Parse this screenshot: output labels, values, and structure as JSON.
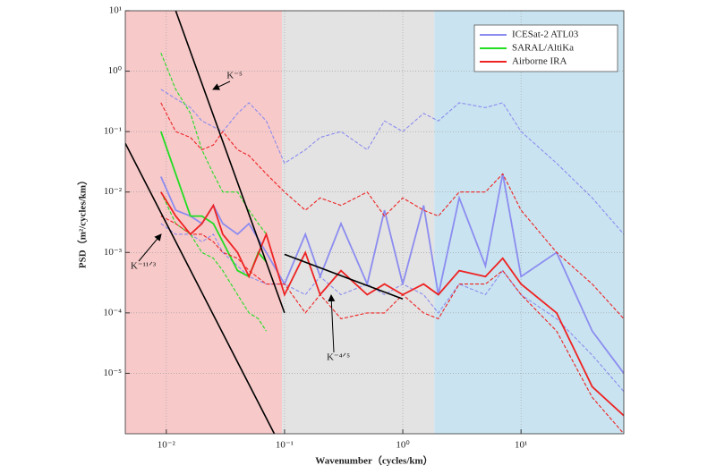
{
  "chart_data": {
    "type": "line",
    "xlabel": "Wavenumber（cycles/km）",
    "ylabel": "PSD（m²/cycles/km）",
    "xscale": "log",
    "yscale": "log",
    "xlim": [
      0.0045,
      74
    ],
    "ylim": [
      1e-06,
      10
    ],
    "xticks": [
      {
        "value": 0.01,
        "label": "10⁻²"
      },
      {
        "value": 0.1,
        "label": "10⁻¹"
      },
      {
        "value": 1,
        "label": "10⁰"
      },
      {
        "value": 10,
        "label": "10¹"
      }
    ],
    "yticks": [
      {
        "value": 1e-05,
        "label": "10⁻⁵"
      },
      {
        "value": 0.0001,
        "label": "10⁻⁴"
      },
      {
        "value": 0.001,
        "label": "10⁻³"
      },
      {
        "value": 0.01,
        "label": "10⁻²"
      },
      {
        "value": 0.1,
        "label": "10⁻¹"
      },
      {
        "value": 1,
        "label": "10⁰"
      },
      {
        "value": 10,
        "label": "10¹"
      }
    ],
    "grid": true,
    "legend_position": "upper right",
    "regions": [
      {
        "xlim": [
          0.0045,
          0.095
        ],
        "color": "#f7c9c9"
      },
      {
        "xlim": [
          0.095,
          1.85
        ],
        "color": "#e3e3e3"
      },
      {
        "xlim": [
          1.85,
          74
        ],
        "color": "#c9e4f0"
      }
    ],
    "series": [
      {
        "name": "ICESat-2 ATL03",
        "color": "#8c8cf0",
        "x": [
          0.009,
          0.012,
          0.016,
          0.02,
          0.025,
          0.03,
          0.04,
          0.05,
          0.07,
          0.1,
          0.15,
          0.2,
          0.3,
          0.5,
          0.7,
          1,
          1.5,
          2,
          3,
          5,
          7,
          10,
          20,
          40,
          74
        ],
        "values": [
          0.018,
          0.005,
          0.004,
          0.003,
          0.006,
          0.003,
          0.002,
          0.003,
          0.001,
          0.0003,
          0.002,
          0.0004,
          0.003,
          0.0003,
          0.005,
          0.0003,
          0.006,
          0.0002,
          0.008,
          0.0006,
          0.02,
          0.0004,
          0.001,
          5e-05,
          1e-05
        ],
        "upper": [
          0.5,
          0.35,
          0.25,
          0.15,
          0.12,
          0.1,
          0.2,
          0.3,
          0.15,
          0.03,
          0.05,
          0.08,
          0.1,
          0.05,
          0.15,
          0.1,
          0.2,
          0.15,
          0.3,
          0.25,
          0.3,
          0.1,
          0.03,
          0.008,
          0.002
        ],
        "lower": [
          0.003,
          0.002,
          0.002,
          0.0015,
          0.002,
          0.001,
          0.0006,
          0.0004,
          0.0003,
          0.0003,
          0.0002,
          0.0004,
          0.0002,
          0.0003,
          0.0002,
          0.0003,
          0.0002,
          0.0001,
          0.0003,
          0.0002,
          0.0005,
          0.0002,
          8e-05,
          2e-05,
          5e-06
        ]
      },
      {
        "name": "SARAL/AltiKa",
        "color": "#22dd22",
        "x": [
          0.009,
          0.012,
          0.016,
          0.02,
          0.025,
          0.03,
          0.04,
          0.05,
          0.06,
          0.07
        ],
        "values": [
          0.1,
          0.02,
          0.004,
          0.004,
          0.003,
          0.0015,
          0.0005,
          0.0004,
          0.001,
          0.0007
        ],
        "upper": [
          2,
          0.5,
          0.2,
          0.05,
          0.02,
          0.01,
          0.01,
          0.005,
          0.003,
          0.002
        ],
        "lower": [
          0.01,
          0.003,
          0.002,
          0.001,
          0.0008,
          0.0005,
          0.0002,
          0.0001,
          8e-05,
          5e-05
        ]
      },
      {
        "name": "Airborne IRA",
        "color": "#ee2222",
        "x": [
          0.009,
          0.012,
          0.016,
          0.02,
          0.025,
          0.03,
          0.04,
          0.05,
          0.07,
          0.1,
          0.15,
          0.2,
          0.3,
          0.5,
          0.7,
          1,
          1.5,
          2,
          3,
          5,
          7,
          10,
          20,
          40,
          74
        ],
        "values": [
          0.01,
          0.004,
          0.002,
          0.003,
          0.006,
          0.002,
          0.001,
          0.0004,
          0.002,
          0.0002,
          0.001,
          0.0002,
          0.0005,
          0.0002,
          0.0003,
          0.0002,
          0.0003,
          0.0002,
          0.0005,
          0.0004,
          0.0008,
          0.0003,
          0.0001,
          6e-06,
          2e-06
        ],
        "upper": [
          0.3,
          0.1,
          0.08,
          0.05,
          0.06,
          0.1,
          0.05,
          0.04,
          0.02,
          0.01,
          0.005,
          0.008,
          0.006,
          0.01,
          0.004,
          0.008,
          0.005,
          0.004,
          0.01,
          0.01,
          0.02,
          0.005,
          0.001,
          0.0003,
          8e-05
        ],
        "lower": [
          0.004,
          0.003,
          0.002,
          0.002,
          0.0015,
          0.001,
          0.0008,
          0.0005,
          0.0003,
          0.0003,
          0.0001,
          0.0002,
          8e-05,
          0.0001,
          0.0001,
          0.0002,
          0.0001,
          8e-05,
          0.0003,
          0.0003,
          0.0005,
          0.0002,
          5e-05,
          4e-06,
          1e-06
        ]
      }
    ],
    "reference_lines": [
      {
        "label": "K⁻⁵",
        "x": [
          0.012,
          0.1
        ],
        "values": [
          10,
          0.0001
        ]
      },
      {
        "label": "K⁻¹¹ᐟ³",
        "x": [
          0.0045,
          0.082
        ],
        "values": [
          0.064,
          1e-06
        ]
      },
      {
        "label": "K⁻⁴ᐟ⁵",
        "x": [
          0.1,
          1
        ],
        "values": [
          0.00093,
          0.00017
        ]
      }
    ]
  }
}
